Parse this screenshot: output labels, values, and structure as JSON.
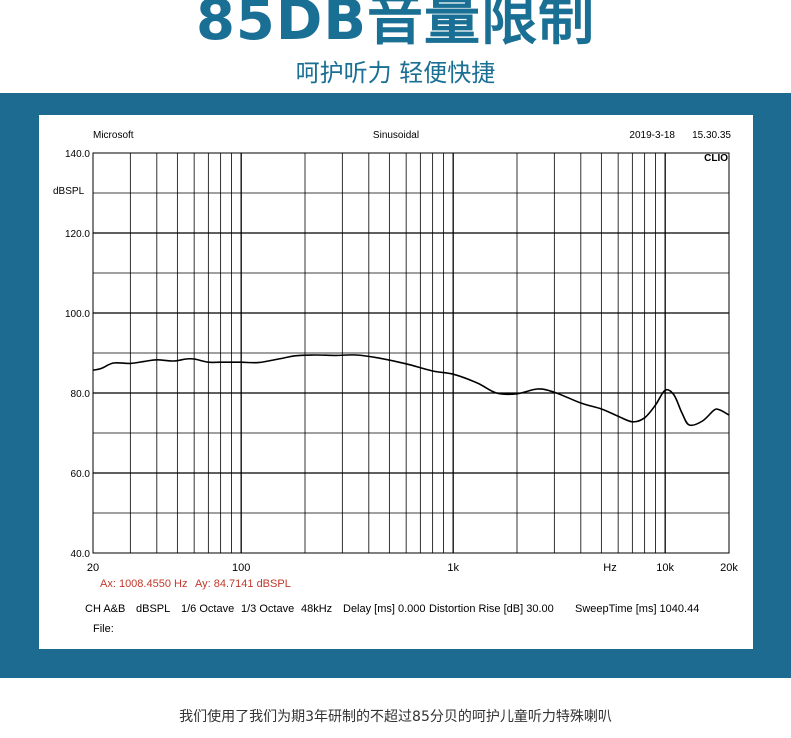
{
  "banner": {
    "headline": "85DB音量限制",
    "subtitle": "呵护听力 轻便快捷"
  },
  "measurement": {
    "brand": "Microsoft",
    "signal": "Sinusoidal",
    "date": "2019-3-18",
    "time": "15.30.35",
    "logo": "CLIO",
    "y_unit": "dBSPL",
    "cursor_x": "Ax: 1008.4550 Hz",
    "cursor_y": "Ay: 84.7141 dBSPL",
    "info_items": [
      "CH A&B",
      "dBSPL",
      "1/6 Octave",
      "1/3 Octave",
      "48kHz",
      "Delay [ms] 0.000",
      "Distortion Rise [dB] 30.00",
      "SweepTime [ms] 1040.44"
    ],
    "file_label": "File:"
  },
  "chart_data": {
    "type": "line",
    "title": "",
    "xlabel": "Hz",
    "ylabel": "dBSPL",
    "x_scale": "log",
    "xlim": [
      20,
      20000
    ],
    "ylim": [
      40,
      140
    ],
    "y_ticks": [
      "140.0",
      "120.0",
      "100.0",
      "80.0",
      "60.0",
      "40.0"
    ],
    "x_ticks": [
      {
        "value": 20,
        "label": "20"
      },
      {
        "value": 100,
        "label": "100"
      },
      {
        "value": 1000,
        "label": "1k"
      },
      {
        "value": 10000,
        "label": "10k"
      },
      {
        "value": 20000,
        "label": "20k"
      }
    ],
    "grid": true,
    "series": [
      {
        "color": "#000000",
        "x": [
          20,
          22,
          25,
          30,
          35,
          40,
          48,
          55,
          60,
          70,
          80,
          100,
          120,
          150,
          180,
          220,
          280,
          350,
          450,
          600,
          800,
          1000,
          1300,
          1600,
          2000,
          2500,
          3000,
          4000,
          5000,
          6000,
          7000,
          8000,
          9000,
          10000,
          11000,
          12000,
          13000,
          15000,
          17000,
          18000,
          20000
        ],
        "values": [
          85.7,
          86.2,
          87.5,
          87.4,
          87.9,
          88.3,
          88.0,
          88.5,
          88.5,
          87.7,
          87.7,
          87.7,
          87.6,
          88.5,
          89.3,
          89.5,
          89.4,
          89.5,
          88.7,
          87.3,
          85.5,
          84.7,
          82.5,
          80.0,
          79.8,
          81.0,
          80.2,
          77.5,
          76.0,
          74.2,
          72.8,
          73.8,
          77.0,
          80.7,
          79.5,
          75.0,
          72.0,
          73.0,
          75.7,
          75.8,
          74.5
        ]
      }
    ]
  },
  "caption": {
    "line1": "我们使用了我们为期3年研制的不超过85分贝的呵护儿童听力特殊喇叭"
  }
}
